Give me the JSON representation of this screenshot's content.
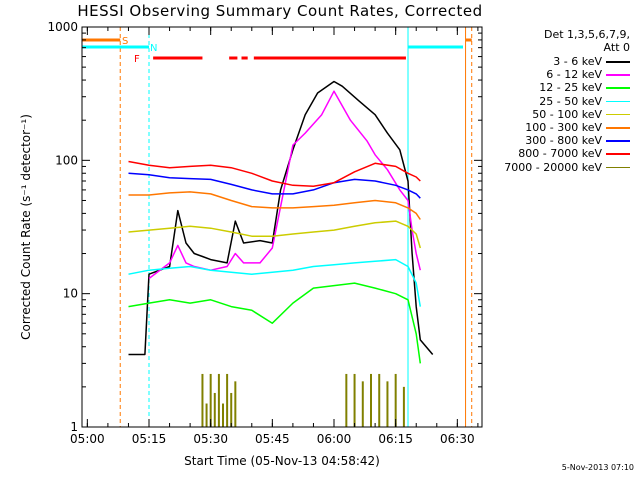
{
  "chart_data": {
    "type": "line",
    "title": "HESSI Observing Summary Count Rates, Corrected",
    "xlabel": "Start Time (05-Nov-13 04:58:42)",
    "ylabel": "Corrected Count Rate (s⁻¹ detector⁻¹)",
    "y_scale": "log",
    "ylim": [
      1,
      1000
    ],
    "xlim": [
      "04:58:42",
      "06:36:00"
    ],
    "x_ticks": [
      "05:00",
      "05:15",
      "05:30",
      "05:45",
      "06:00",
      "06:15",
      "06:30"
    ],
    "y_ticks": [
      "1",
      "10",
      "100",
      "1000"
    ],
    "legend_header": [
      "Det 1,3,5,6,7,9,",
      "Att 0"
    ],
    "series": [
      {
        "name": "3 - 6 keV",
        "color": "#000000",
        "x": [
          "05:10",
          "05:14",
          "05:15",
          "05:20",
          "05:22",
          "05:24",
          "05:26",
          "05:28",
          "05:30",
          "05:34",
          "05:36",
          "05:38",
          "05:42",
          "05:45",
          "05:47",
          "05:50",
          "05:53",
          "05:56",
          "06:00",
          "06:02",
          "06:06",
          "06:10",
          "06:13",
          "06:16",
          "06:18",
          "06:19",
          "06:20",
          "06:21",
          "06:24"
        ],
        "y": [
          3.5,
          3.5,
          14,
          16,
          42,
          24,
          20,
          19,
          18,
          17,
          35,
          24,
          25,
          24,
          60,
          120,
          220,
          320,
          390,
          360,
          280,
          220,
          160,
          120,
          70,
          20,
          8,
          4.5,
          3.5
        ]
      },
      {
        "name": "6 - 12 keV",
        "color": "#ff00ff",
        "x": [
          "05:15",
          "05:20",
          "05:22",
          "05:24",
          "05:26",
          "05:30",
          "05:34",
          "05:36",
          "05:38",
          "05:42",
          "05:45",
          "05:47",
          "05:50",
          "05:53",
          "05:57",
          "06:00",
          "06:04",
          "06:08",
          "06:10",
          "06:13",
          "06:16",
          "06:18",
          "06:19",
          "06:20",
          "06:21"
        ],
        "y": [
          13,
          17,
          23,
          17,
          16,
          15,
          16,
          20,
          17,
          17,
          22,
          45,
          130,
          160,
          220,
          330,
          200,
          140,
          110,
          85,
          60,
          50,
          30,
          20,
          15
        ]
      },
      {
        "name": "12 - 25 keV",
        "color": "#00ff00",
        "x": [
          "05:10",
          "05:15",
          "05:20",
          "05:25",
          "05:30",
          "05:35",
          "05:40",
          "05:45",
          "05:50",
          "05:55",
          "06:00",
          "06:05",
          "06:10",
          "06:15",
          "06:18",
          "06:20",
          "06:21"
        ],
        "y": [
          8,
          8.5,
          9,
          8.5,
          9,
          8,
          7.5,
          6,
          8.5,
          11,
          11.5,
          12,
          11,
          10,
          9,
          5,
          3
        ]
      },
      {
        "name": "25 - 50 keV",
        "color": "#00ffff",
        "x": [
          "05:10",
          "05:15",
          "05:20",
          "05:25",
          "05:30",
          "05:35",
          "05:40",
          "05:45",
          "05:50",
          "05:55",
          "06:00",
          "06:05",
          "06:10",
          "06:15",
          "06:18",
          "06:20",
          "06:21"
        ],
        "y": [
          14,
          15,
          15.5,
          16,
          15,
          14.5,
          14,
          14.5,
          15,
          16,
          16.5,
          17,
          17.5,
          18,
          16,
          12,
          8
        ]
      },
      {
        "name": "50 - 100 keV",
        "color": "#cccc00",
        "x": [
          "05:10",
          "05:15",
          "05:20",
          "05:25",
          "05:30",
          "05:35",
          "05:40",
          "05:45",
          "05:50",
          "05:55",
          "06:00",
          "06:05",
          "06:10",
          "06:15",
          "06:18",
          "06:20",
          "06:21"
        ],
        "y": [
          29,
          30,
          31,
          32,
          31,
          29,
          27,
          27,
          28,
          29,
          30,
          32,
          34,
          35,
          32,
          28,
          22
        ]
      },
      {
        "name": "100 - 300 keV",
        "color": "#ff7700",
        "x": [
          "05:10",
          "05:15",
          "05:20",
          "05:25",
          "05:30",
          "05:35",
          "05:40",
          "05:45",
          "05:50",
          "05:55",
          "06:00",
          "06:05",
          "06:10",
          "06:15",
          "06:18",
          "06:20",
          "06:21"
        ],
        "y": [
          55,
          55,
          57,
          58,
          56,
          50,
          45,
          44,
          44,
          45,
          46,
          48,
          50,
          48,
          44,
          40,
          36
        ]
      },
      {
        "name": "300 - 800 keV",
        "color": "#0000ff",
        "x": [
          "05:10",
          "05:15",
          "05:20",
          "05:25",
          "05:30",
          "05:35",
          "05:40",
          "05:45",
          "05:50",
          "05:55",
          "06:00",
          "06:05",
          "06:10",
          "06:15",
          "06:18",
          "06:20",
          "06:21"
        ],
        "y": [
          80,
          78,
          74,
          73,
          72,
          66,
          60,
          56,
          56,
          60,
          68,
          72,
          70,
          65,
          60,
          56,
          52
        ]
      },
      {
        "name": "800 - 7000 keV",
        "color": "#ff0000",
        "x": [
          "05:10",
          "05:15",
          "05:20",
          "05:25",
          "05:30",
          "05:35",
          "05:40",
          "05:45",
          "05:50",
          "05:55",
          "06:00",
          "06:05",
          "06:10",
          "06:15",
          "06:18",
          "06:20",
          "06:21"
        ],
        "y": [
          98,
          92,
          88,
          90,
          92,
          88,
          80,
          70,
          65,
          64,
          68,
          82,
          95,
          90,
          80,
          75,
          70
        ]
      },
      {
        "name": "7000 - 20000 keV",
        "color": "#808000",
        "x": [
          "05:28",
          "05:29",
          "05:30",
          "05:31",
          "05:32",
          "05:33",
          "05:34",
          "05:35",
          "05:36",
          "06:03",
          "06:05",
          "06:07",
          "06:09",
          "06:11",
          "06:13",
          "06:15",
          "06:17"
        ],
        "y": [
          2.5,
          1.5,
          2.5,
          1.8,
          2.5,
          1.5,
          2.5,
          1.8,
          2.2,
          2.5,
          2.5,
          2.2,
          2.5,
          2.5,
          2.2,
          2.5,
          2.0
        ]
      }
    ],
    "flags": [
      {
        "letter": "S",
        "color": "#ff7700"
      },
      {
        "letter": "N",
        "color": "#00ffff"
      },
      {
        "letter": "F",
        "color": "#ff0000"
      }
    ],
    "date_stamp": "5-Nov-2013 07:10"
  }
}
